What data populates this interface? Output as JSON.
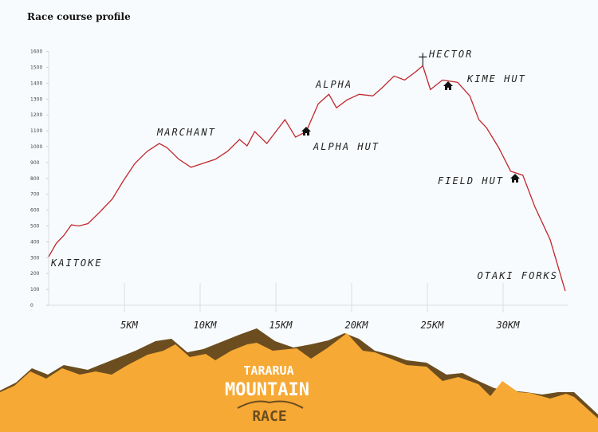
{
  "title": "Race course profile",
  "chart_data": {
    "type": "line",
    "title": "Race course profile",
    "xlabel": "",
    "ylabel": "",
    "xlim": [
      0,
      34
    ],
    "ylim": [
      0,
      1600
    ],
    "yticks": [
      0,
      100,
      200,
      300,
      400,
      500,
      600,
      700,
      800,
      900,
      1000,
      1100,
      1200,
      1300,
      1400,
      1500,
      1600
    ],
    "xticks": [
      {
        "v": 5,
        "label": "5KM"
      },
      {
        "v": 10,
        "label": "10KM"
      },
      {
        "v": 15,
        "label": "15KM"
      },
      {
        "v": 20,
        "label": "20KM"
      },
      {
        "v": 25,
        "label": "25KM"
      },
      {
        "v": 30,
        "label": "30KM"
      }
    ],
    "line_color": "#c0272d",
    "points": [
      [
        0,
        306
      ],
      [
        0.5,
        390
      ],
      [
        1,
        440
      ],
      [
        1.5,
        507
      ],
      [
        2,
        500
      ],
      [
        2.6,
        515
      ],
      [
        3.4,
        590
      ],
      [
        4.2,
        670
      ],
      [
        4.9,
        780
      ],
      [
        5.7,
        895
      ],
      [
        6.5,
        970
      ],
      [
        7.3,
        1020
      ],
      [
        7.8,
        995
      ],
      [
        8.6,
        920
      ],
      [
        9.4,
        870
      ],
      [
        10.2,
        895
      ],
      [
        11,
        920
      ],
      [
        11.8,
        970
      ],
      [
        12.6,
        1045
      ],
      [
        13.1,
        1005
      ],
      [
        13.6,
        1095
      ],
      [
        14.4,
        1020
      ],
      [
        15,
        1095
      ],
      [
        15.6,
        1170
      ],
      [
        16.3,
        1060
      ],
      [
        17,
        1095
      ],
      [
        17.8,
        1270
      ],
      [
        18.5,
        1330
      ],
      [
        19,
        1245
      ],
      [
        19.7,
        1295
      ],
      [
        20.5,
        1330
      ],
      [
        21.4,
        1320
      ],
      [
        22,
        1370
      ],
      [
        22.8,
        1445
      ],
      [
        23.5,
        1420
      ],
      [
        24.2,
        1470
      ],
      [
        24.7,
        1510
      ],
      [
        25.2,
        1360
      ],
      [
        26,
        1420
      ],
      [
        27,
        1405
      ],
      [
        27.8,
        1320
      ],
      [
        28.4,
        1170
      ],
      [
        28.9,
        1120
      ],
      [
        29.7,
        995
      ],
      [
        30.5,
        845
      ],
      [
        31.3,
        820
      ],
      [
        32.1,
        620
      ],
      [
        33.1,
        415
      ],
      [
        34.1,
        90
      ]
    ],
    "annotations": [
      {
        "label": "KAITOKE",
        "km": 0,
        "elev": 300,
        "icon": "none"
      },
      {
        "label": "MARCHANT",
        "km": 7.2,
        "elev": 1080,
        "icon": "none"
      },
      {
        "label": "ALPHA",
        "km": 18,
        "elev": 1370,
        "icon": "none"
      },
      {
        "label": "ALPHA HUT",
        "km": 17,
        "elev": 1100,
        "icon": "hut-icon"
      },
      {
        "label": "HECTOR",
        "km": 24.7,
        "elev": 1510,
        "icon": "cross-icon"
      },
      {
        "label": "KIME HUT",
        "km": 26.3,
        "elev": 1380,
        "icon": "hut-icon"
      },
      {
        "label": "FIELD HUT",
        "km": 30.7,
        "elev": 800,
        "icon": "hut-icon"
      },
      {
        "label": "OTAKI FORKS",
        "km": 34,
        "elev": 90,
        "icon": "none"
      }
    ]
  },
  "logo": {
    "text": "TARARUA MOUNTAIN RACE",
    "colors": {
      "orange": "#f7a935",
      "brown": "#6b4d1f"
    }
  }
}
